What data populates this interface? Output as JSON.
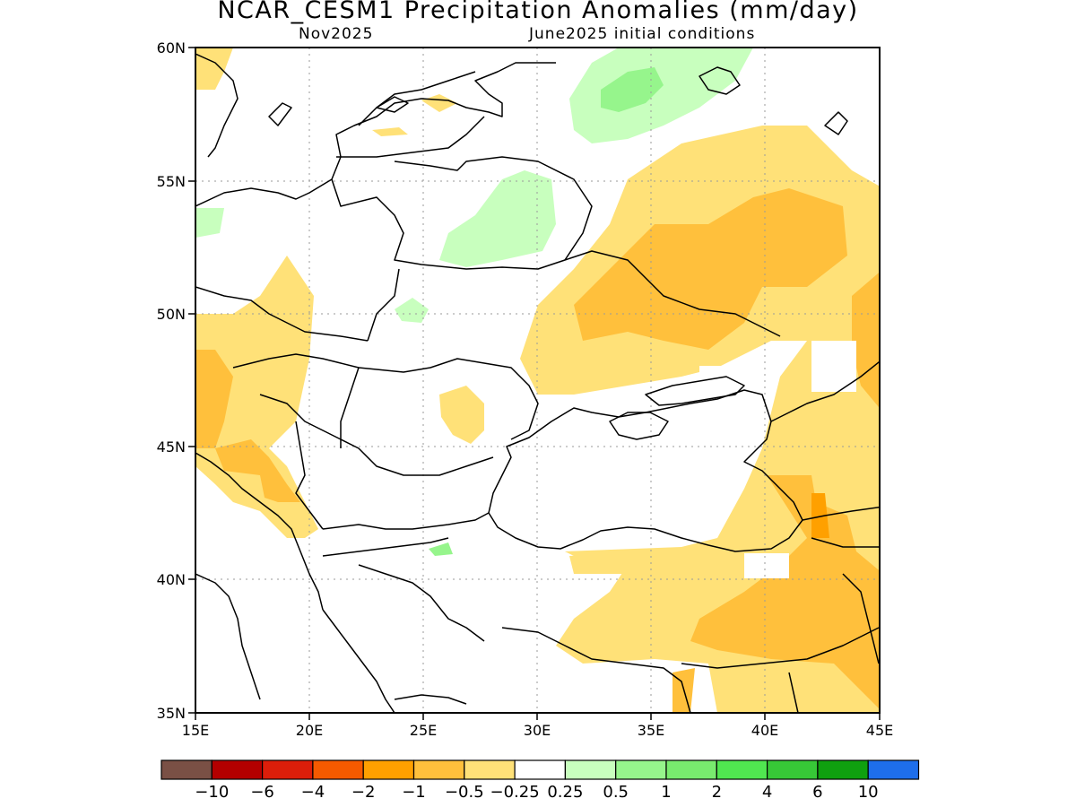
{
  "header": {
    "title": "NCAR_CESM1 Precipitation Anomalies (mm/day)",
    "valid_label": "Nov2025",
    "init_label": "June2025 initial conditions"
  },
  "axes": {
    "lat_labels": [
      "60N",
      "55N",
      "50N",
      "45N",
      "40N",
      "35N"
    ],
    "lon_labels": [
      "15E",
      "20E",
      "25E",
      "30E",
      "35E",
      "40E",
      "45E"
    ]
  },
  "colorbar": {
    "colors": [
      "#7a5045",
      "#b40000",
      "#dc1e0a",
      "#f55a00",
      "#ffa000",
      "#ffc03c",
      "#ffe178",
      "#ffffff",
      "#c8ffbe",
      "#96f58c",
      "#78eb6e",
      "#50e650",
      "#37c837",
      "#0fa00f",
      "#1e6eeb"
    ],
    "labels": [
      "-10",
      "-6",
      "-4",
      "-2",
      "-1",
      "-0.5",
      "-0.25",
      "0.25",
      "0.5",
      "1",
      "2",
      "4",
      "6",
      "10"
    ]
  }
}
